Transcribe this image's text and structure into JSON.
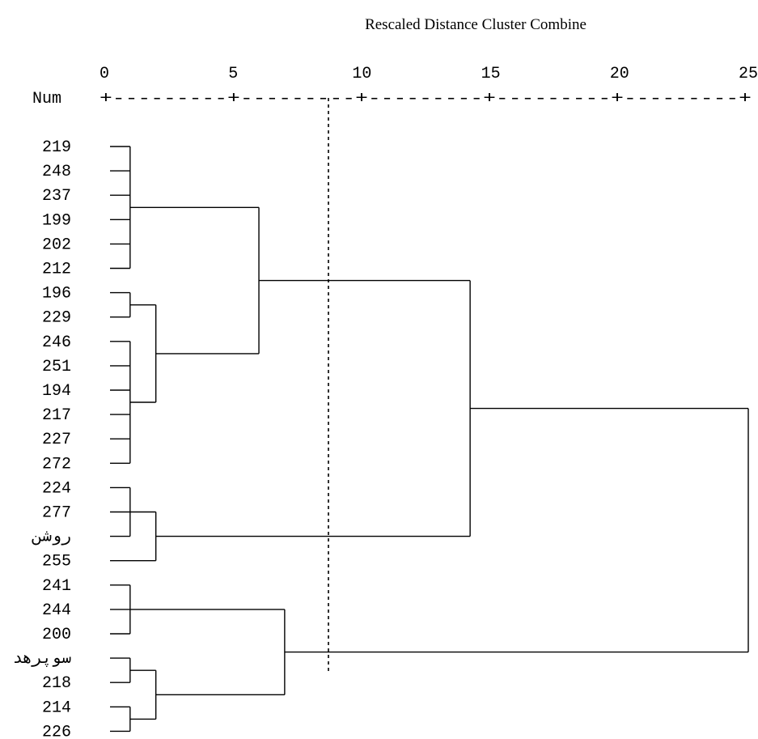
{
  "chart_data": {
    "type": "dendrogram",
    "title": "Rescaled Distance Cluster Combine",
    "axis": {
      "range": [
        0,
        25
      ],
      "ticks": [
        0,
        5,
        10,
        15,
        20,
        25
      ],
      "ruler": "+---------+---------+---------+---------+---------+"
    },
    "row_header": "Num",
    "leaves": [
      "219",
      "248",
      "237",
      "199",
      "202",
      "212",
      "196",
      "229",
      "246",
      "251",
      "194",
      "217",
      "227",
      "272",
      "224",
      "277",
      "روشن",
      "255",
      "241",
      "244",
      "200",
      "سوپرهد",
      "218",
      "214",
      "226"
    ],
    "cut_distance": 8.7,
    "merges": [
      {
        "name": "m-a1",
        "children": [
          "L0",
          "L1",
          "L2",
          "L3",
          "L4",
          "L5"
        ],
        "height": 1.0
      },
      {
        "name": "m-b1",
        "children": [
          "L6",
          "L7"
        ],
        "height": 1.0
      },
      {
        "name": "m-b2",
        "children": [
          "L8",
          "L9",
          "L10",
          "L11",
          "L12",
          "L13"
        ],
        "height": 1.0
      },
      {
        "name": "m-b",
        "children": [
          "m-b1",
          "m-b2"
        ],
        "height": 2.0
      },
      {
        "name": "m-ab",
        "children": [
          "m-a1",
          "m-b"
        ],
        "height": 6.0
      },
      {
        "name": "m-c1",
        "children": [
          "L14",
          "L15",
          "L16"
        ],
        "height": 1.0
      },
      {
        "name": "m-c",
        "children": [
          "m-c1",
          "L17"
        ],
        "height": 2.0
      },
      {
        "name": "m-abc",
        "children": [
          "m-ab",
          "m-c"
        ],
        "height": 14.2
      },
      {
        "name": "m-d1",
        "children": [
          "L18",
          "L19",
          "L20"
        ],
        "height": 1.0
      },
      {
        "name": "m-e1",
        "children": [
          "L21",
          "L22"
        ],
        "height": 1.0
      },
      {
        "name": "m-e2",
        "children": [
          "L23",
          "L24"
        ],
        "height": 1.0
      },
      {
        "name": "m-e",
        "children": [
          "m-e1",
          "m-e2"
        ],
        "height": 2.0
      },
      {
        "name": "m-de",
        "children": [
          "m-d1",
          "m-e"
        ],
        "height": 7.0
      },
      {
        "name": "m-root",
        "children": [
          "m-abc",
          "m-de"
        ],
        "height": 25.0
      }
    ]
  }
}
